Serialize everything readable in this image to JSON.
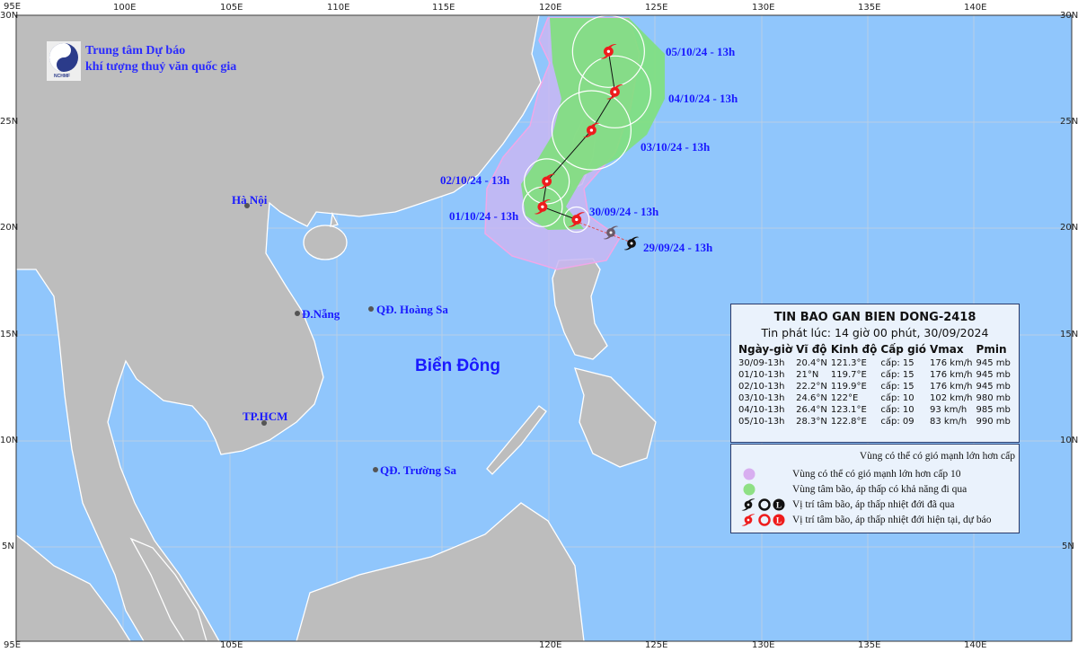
{
  "logo": {
    "org_line1": "Trung tâm Dự báo",
    "org_line2": "khí tượng thuỷ văn quốc gia",
    "logo_text": "NCHMF"
  },
  "colors": {
    "sea": "#90c6fc",
    "land": "#bdbdbd",
    "wind_gt_10_zone": "#c9b6f2",
    "storm_center_zone": "#80e07c",
    "current_forecast": "#ff1a1a",
    "past": "#111111",
    "label_blue": "#1a1aff"
  },
  "axes": {
    "lon_labels": [
      "95E",
      "100E",
      "105E",
      "110E",
      "115E",
      "120E",
      "125E",
      "130E",
      "135E",
      "140E"
    ],
    "lat_labels": [
      "30N",
      "25N",
      "20N",
      "15N",
      "10N",
      "5N"
    ]
  },
  "places": {
    "hanoi": "Hà Nội",
    "danang": "Đ.Nẵng",
    "hoangsa": "QĐ. Hoàng Sa",
    "bien_dong": "Biển Đông",
    "hcm": "TP.HCM",
    "truongsa": "QĐ. Trường Sa"
  },
  "track": {
    "past_label": "29/09/24 - 13h",
    "points": [
      {
        "label": "30/09/24 - 13h",
        "lat": 20.4,
        "lon": 121.3
      },
      {
        "label": "01/10/24 - 13h",
        "lat": 21,
        "lon": 119.7
      },
      {
        "label": "02/10/24 - 13h",
        "lat": 22.2,
        "lon": 119.9
      },
      {
        "label": "03/10/24 - 13h",
        "lat": 24.6,
        "lon": 122
      },
      {
        "label": "04/10/24 - 13h",
        "lat": 26.4,
        "lon": 123.1
      },
      {
        "label": "05/10/24 - 13h",
        "lat": 28.3,
        "lon": 122.8
      }
    ]
  },
  "info": {
    "title": "TIN BAO GAN BIEN DONG-2418",
    "issued": "Tin phát lúc: 14 giờ 00 phút, 30/09/2024",
    "headers": [
      "Ngày-giờ",
      "Vĩ độ",
      "Kinh độ",
      "Cấp gió",
      "Vmax",
      "Pmin"
    ],
    "rows": [
      [
        "30/09-13h",
        "20.4°N",
        "121.3°E",
        "cấp: 15",
        "176 km/h",
        "945 mb"
      ],
      [
        "01/10-13h",
        "21°N",
        "119.7°E",
        "cấp: 15",
        "176 km/h",
        "945 mb"
      ],
      [
        "02/10-13h",
        "22.2°N",
        "119.9°E",
        "cấp: 15",
        "176 km/h",
        "945 mb"
      ],
      [
        "03/10-13h",
        "24.6°N",
        "122°E",
        "cấp: 10",
        "102 km/h",
        "980 mb"
      ],
      [
        "04/10-13h",
        "26.4°N",
        "123.1°E",
        "cấp: 10",
        "93 km/h",
        "985 mb"
      ],
      [
        "05/10-13h",
        "28.3°N",
        "122.8°E",
        "cấp: 09",
        "83 km/h",
        "990 mb"
      ]
    ]
  },
  "legend": {
    "header": "Vùng có thể có gió mạnh lớn hơn cấp",
    "items": [
      {
        "icon": "purple-circle",
        "text": "Vùng có thể có gió mạnh lớn hơn cấp 10"
      },
      {
        "icon": "green-circle",
        "text": "Vùng tâm bão, áp thấp có khả năng đi qua"
      },
      {
        "icon": "black-storm-symbols",
        "text": "Vị trí tâm bão, áp thấp nhiệt đới đã qua"
      },
      {
        "icon": "red-storm-symbols",
        "text": "Vị trí tâm bão, áp thấp nhiệt đới hiện tại, dự báo"
      }
    ]
  }
}
